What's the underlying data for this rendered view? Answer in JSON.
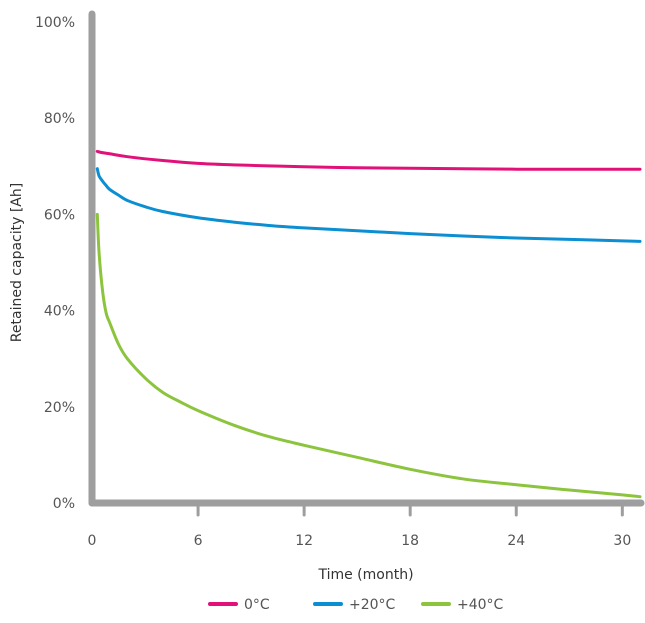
{
  "chart_data": {
    "type": "line",
    "title": "",
    "xlabel": "Time (month)",
    "ylabel": "Retained capacity [Ah]",
    "xlim": [
      0,
      31
    ],
    "ylim": [
      0,
      100
    ],
    "x_ticks": [
      0,
      6,
      12,
      18,
      24,
      30
    ],
    "y_ticks": [
      0,
      20,
      40,
      60,
      80,
      100
    ],
    "x_tick_labels": [
      "0",
      "6",
      "12",
      "18",
      "24",
      "30"
    ],
    "y_tick_labels": [
      "0%",
      "20%",
      "40%",
      "60%",
      "80%",
      "100%"
    ],
    "grid": false,
    "legend_position": "bottom",
    "axis_color": "#9e9e9e",
    "series": [
      {
        "name": "0°C",
        "color": "#e2117a",
        "x": [
          0.3,
          0.5,
          1,
          2,
          4,
          6,
          8,
          10,
          12,
          15,
          18,
          21,
          24,
          27,
          30,
          31
        ],
        "y": [
          73.1,
          72.9,
          72.6,
          72.0,
          71.2,
          70.6,
          70.3,
          70.1,
          69.9,
          69.7,
          69.6,
          69.5,
          69.4,
          69.4,
          69.4,
          69.4
        ]
      },
      {
        "name": "+20°C",
        "color": "#0b8ed2",
        "x": [
          0.3,
          0.4,
          0.6,
          0.8,
          1,
          1.5,
          2,
          3,
          4,
          6,
          8,
          10,
          12,
          15,
          18,
          21,
          24,
          27,
          30,
          31
        ],
        "y": [
          69.5,
          68.0,
          66.9,
          66.0,
          65.2,
          64.0,
          62.9,
          61.6,
          60.6,
          59.3,
          58.4,
          57.7,
          57.2,
          56.6,
          56.0,
          55.5,
          55.1,
          54.8,
          54.5,
          54.4
        ]
      },
      {
        "name": "+40°C",
        "color": "#8cc43e",
        "x": [
          0.3,
          0.4,
          0.6,
          0.8,
          1,
          1.5,
          2,
          3,
          4,
          5,
          6,
          8,
          10,
          12,
          15,
          18,
          21,
          24,
          27,
          30,
          31
        ],
        "y": [
          60.0,
          52.0,
          44.0,
          39.5,
          37.5,
          33.0,
          30.0,
          26.0,
          23.0,
          21.0,
          19.2,
          16.2,
          13.8,
          12.0,
          9.5,
          7.0,
          5.0,
          3.8,
          2.7,
          1.7,
          1.3
        ]
      }
    ]
  }
}
